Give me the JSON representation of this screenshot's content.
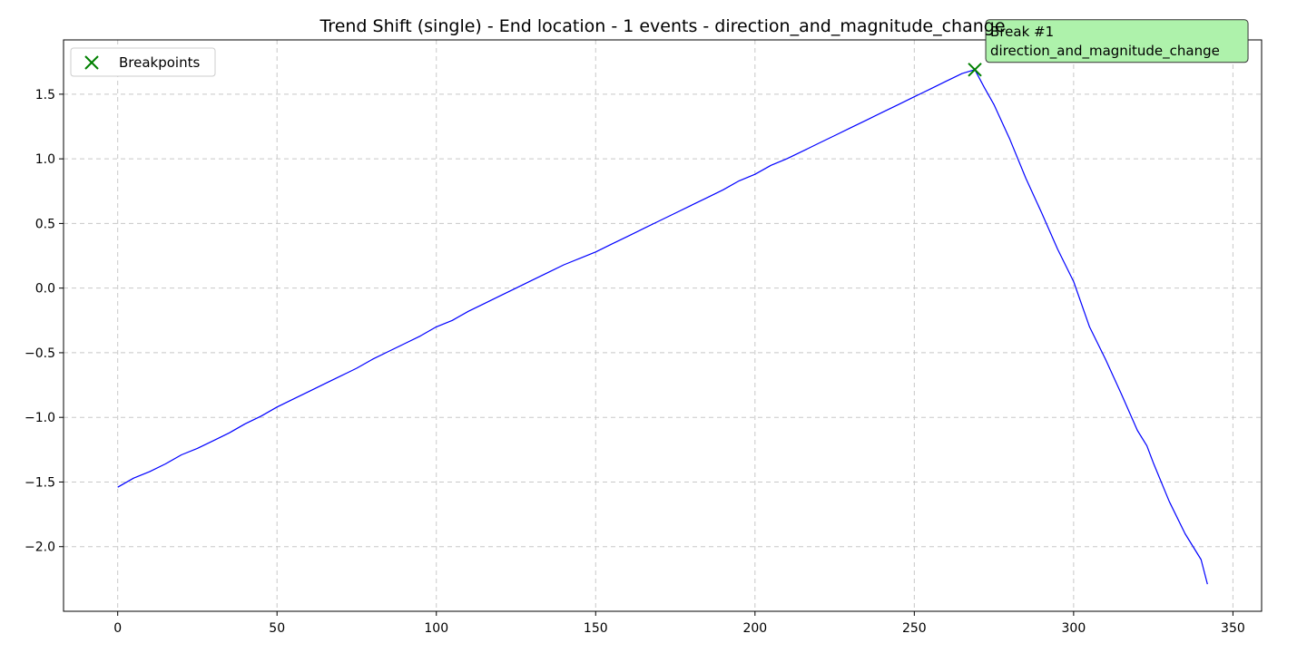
{
  "chart_data": {
    "type": "line",
    "title": "Trend Shift (single) - End location - 1 events - direction_and_magnitude_change",
    "xlabel": "",
    "ylabel": "",
    "xlim": [
      -17,
      359
    ],
    "ylim": [
      -2.5,
      1.92
    ],
    "x_ticks": [
      0,
      50,
      100,
      150,
      200,
      250,
      300,
      350
    ],
    "y_ticks": [
      -2.0,
      -1.5,
      -1.0,
      -0.5,
      0.0,
      0.5,
      1.0,
      1.5
    ],
    "x_tick_labels": [
      "0",
      "50",
      "100",
      "150",
      "200",
      "250",
      "300",
      "350"
    ],
    "y_tick_labels": [
      "−2.0",
      "−1.5",
      "−1.0",
      "−0.5",
      "0.0",
      "0.5",
      "1.0",
      "1.5"
    ],
    "grid": true,
    "legend": {
      "placement": "top-left",
      "entries": [
        {
          "label": "Breakpoints",
          "marker": "x",
          "color": "#008000"
        }
      ]
    },
    "series": [
      {
        "color": "#0000ff",
        "points": [
          [
            0,
            -1.54
          ],
          [
            5,
            -1.47
          ],
          [
            10,
            -1.42
          ],
          [
            15,
            -1.36
          ],
          [
            20,
            -1.29
          ],
          [
            25,
            -1.24
          ],
          [
            30,
            -1.18
          ],
          [
            35,
            -1.12
          ],
          [
            40,
            -1.05
          ],
          [
            45,
            -0.99
          ],
          [
            50,
            -0.92
          ],
          [
            55,
            -0.86
          ],
          [
            60,
            -0.8
          ],
          [
            65,
            -0.74
          ],
          [
            70,
            -0.68
          ],
          [
            75,
            -0.62
          ],
          [
            80,
            -0.55
          ],
          [
            85,
            -0.49
          ],
          [
            90,
            -0.43
          ],
          [
            95,
            -0.37
          ],
          [
            100,
            -0.3
          ],
          [
            105,
            -0.25
          ],
          [
            110,
            -0.18
          ],
          [
            115,
            -0.12
          ],
          [
            120,
            -0.06
          ],
          [
            125,
            0.0
          ],
          [
            130,
            0.06
          ],
          [
            135,
            0.12
          ],
          [
            140,
            0.18
          ],
          [
            145,
            0.23
          ],
          [
            150,
            0.28
          ],
          [
            155,
            0.34
          ],
          [
            160,
            0.4
          ],
          [
            165,
            0.46
          ],
          [
            170,
            0.52
          ],
          [
            175,
            0.58
          ],
          [
            180,
            0.64
          ],
          [
            185,
            0.7
          ],
          [
            190,
            0.76
          ],
          [
            195,
            0.83
          ],
          [
            200,
            0.88
          ],
          [
            205,
            0.95
          ],
          [
            210,
            1.0
          ],
          [
            215,
            1.06
          ],
          [
            220,
            1.12
          ],
          [
            225,
            1.18
          ],
          [
            230,
            1.24
          ],
          [
            235,
            1.3
          ],
          [
            240,
            1.36
          ],
          [
            245,
            1.42
          ],
          [
            250,
            1.48
          ],
          [
            255,
            1.54
          ],
          [
            260,
            1.6
          ],
          [
            265,
            1.66
          ],
          [
            269,
            1.69
          ],
          [
            272,
            1.55
          ],
          [
            275,
            1.42
          ],
          [
            280,
            1.15
          ],
          [
            285,
            0.85
          ],
          [
            290,
            0.58
          ],
          [
            295,
            0.3
          ],
          [
            300,
            0.05
          ],
          [
            305,
            -0.3
          ],
          [
            310,
            -0.55
          ],
          [
            315,
            -0.82
          ],
          [
            320,
            -1.1
          ],
          [
            323,
            -1.22
          ],
          [
            325,
            -1.35
          ],
          [
            330,
            -1.65
          ],
          [
            335,
            -1.9
          ],
          [
            340,
            -2.1
          ],
          [
            342,
            -2.29
          ]
        ]
      }
    ],
    "breakpoints": [
      {
        "x": 269,
        "y": 1.69,
        "marker": "x",
        "color": "#008000"
      }
    ],
    "annotations": [
      {
        "x": 269,
        "y": 1.69,
        "lines": [
          "Break #1",
          "direction_and_magnitude_change"
        ],
        "background": "#aef2ab"
      }
    ]
  }
}
